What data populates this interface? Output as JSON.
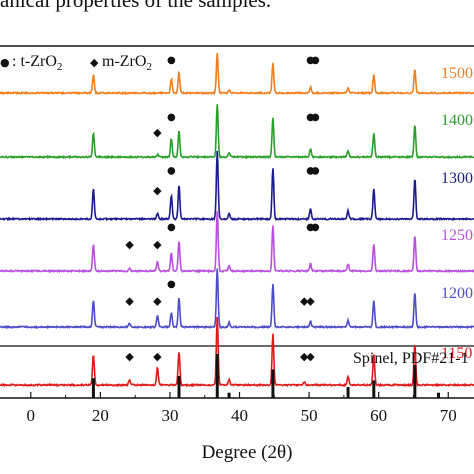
{
  "caption": "anical properties of the samples.",
  "chart_data": {
    "type": "line",
    "xlabel": "Degree (2θ)",
    "xlim": [
      5,
      76
    ],
    "x_ticks": [
      "0",
      "20",
      "30",
      "40",
      "50",
      "60",
      "70"
    ],
    "legend": [
      {
        "marker": "●",
        "label": "t-ZrO",
        "sub": "2"
      },
      {
        "marker": "◆",
        "label": "m-ZrO",
        "sub": "2"
      }
    ],
    "peaks_spinel": [
      {
        "x": 19.0,
        "h": 0.45
      },
      {
        "x": 31.3,
        "h": 0.5
      },
      {
        "x": 36.8,
        "h": 1.0
      },
      {
        "x": 38.5,
        "h": 0.08
      },
      {
        "x": 44.8,
        "h": 0.75
      },
      {
        "x": 55.6,
        "h": 0.12
      },
      {
        "x": 59.3,
        "h": 0.45
      },
      {
        "x": 65.2,
        "h": 0.6
      }
    ],
    "reference": {
      "label": "Spinel, PDF#21-1",
      "lines": [
        {
          "x": 19.0,
          "h": 0.45
        },
        {
          "x": 31.3,
          "h": 0.5
        },
        {
          "x": 36.8,
          "h": 1.0
        },
        {
          "x": 38.5,
          "h": 0.12
        },
        {
          "x": 44.8,
          "h": 0.65
        },
        {
          "x": 55.6,
          "h": 0.25
        },
        {
          "x": 59.3,
          "h": 0.4
        },
        {
          "x": 65.2,
          "h": 0.75
        },
        {
          "x": 68.6,
          "h": 0.12
        },
        {
          "x": 74.1,
          "h": 0.12
        }
      ]
    },
    "series": [
      {
        "name": "1500",
        "color": "#f07f20",
        "extra_peaks": [
          {
            "x": 30.2,
            "h": 0.35
          },
          {
            "x": 50.2,
            "h": 0.15
          }
        ],
        "markers": [
          {
            "x": 30.2,
            "sym": "●"
          },
          {
            "x": 50.2,
            "sym": "●"
          },
          {
            "x": 50.9,
            "sym": "●"
          }
        ]
      },
      {
        "name": "1400",
        "color": "#2aa02a",
        "extra_peaks": [
          {
            "x": 30.2,
            "h": 0.35
          },
          {
            "x": 28.2,
            "h": 0.05
          },
          {
            "x": 50.2,
            "h": 0.15
          }
        ],
        "markers": [
          {
            "x": 28.2,
            "sym": "◆"
          },
          {
            "x": 30.2,
            "sym": "●"
          },
          {
            "x": 50.2,
            "sym": "●"
          },
          {
            "x": 50.9,
            "sym": "●"
          }
        ]
      },
      {
        "name": "1300",
        "color": "#1b1b8f",
        "extra_peaks": [
          {
            "x": 30.2,
            "h": 0.35
          },
          {
            "x": 28.2,
            "h": 0.08
          },
          {
            "x": 50.2,
            "h": 0.15
          }
        ],
        "markers": [
          {
            "x": 28.2,
            "sym": "◆"
          },
          {
            "x": 30.2,
            "sym": "●"
          },
          {
            "x": 50.2,
            "sym": "●"
          },
          {
            "x": 50.9,
            "sym": "●"
          }
        ]
      },
      {
        "name": "1250",
        "color": "#b94fe0",
        "extra_peaks": [
          {
            "x": 30.2,
            "h": 0.3
          },
          {
            "x": 28.2,
            "h": 0.15
          },
          {
            "x": 24.2,
            "h": 0.05
          },
          {
            "x": 50.2,
            "h": 0.12
          }
        ],
        "markers": [
          {
            "x": 24.2,
            "sym": "◆"
          },
          {
            "x": 28.2,
            "sym": "◆"
          },
          {
            "x": 30.2,
            "sym": "●"
          },
          {
            "x": 50.2,
            "sym": "●"
          },
          {
            "x": 50.9,
            "sym": "●"
          }
        ]
      },
      {
        "name": "1200",
        "color": "#4d4dcc",
        "extra_peaks": [
          {
            "x": 30.2,
            "h": 0.25
          },
          {
            "x": 28.2,
            "h": 0.2
          },
          {
            "x": 24.2,
            "h": 0.06
          },
          {
            "x": 50.2,
            "h": 0.1
          }
        ],
        "markers": [
          {
            "x": 24.2,
            "sym": "◆"
          },
          {
            "x": 28.2,
            "sym": "◆"
          },
          {
            "x": 30.2,
            "sym": "●"
          },
          {
            "x": 49.3,
            "sym": "◆"
          },
          {
            "x": 50.2,
            "sym": "◆"
          }
        ]
      },
      {
        "name": "1150",
        "color": "#e01a1a",
        "extra_peaks": [
          {
            "x": 28.2,
            "h": 0.25
          },
          {
            "x": 24.2,
            "h": 0.08
          },
          {
            "x": 49.3,
            "h": 0.05
          }
        ],
        "markers": [
          {
            "x": 24.2,
            "sym": "◆"
          },
          {
            "x": 28.2,
            "sym": "◆"
          },
          {
            "x": 49.3,
            "sym": "◆"
          },
          {
            "x": 50.2,
            "sym": "◆"
          }
        ]
      }
    ]
  }
}
